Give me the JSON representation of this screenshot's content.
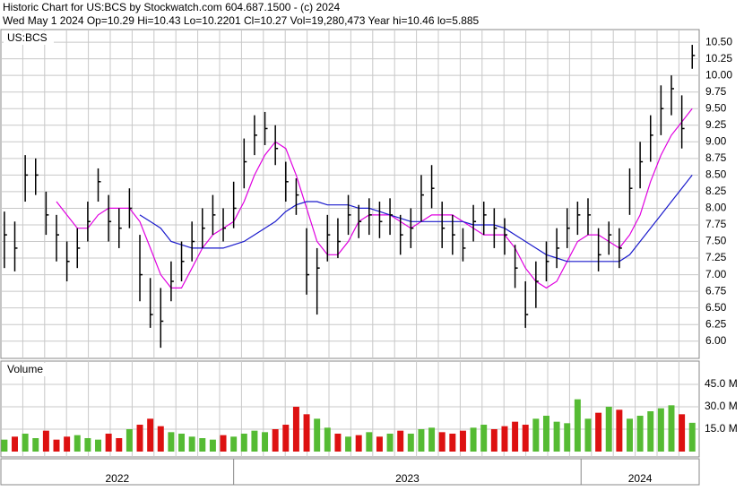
{
  "chart_data": {
    "type": "ohlc",
    "title": "Historic Chart for US:BCS by Stockwatch.com 604.687.1500 - (c) 2024",
    "subtitle": "Wed May  1 2024  Op=10.29  Hi=10.43  Lo=10.2201  Cl=10.27  Vol=19,280,473  Year hi=10.46  lo=5.885",
    "symbol_label": "US:BCS",
    "x": [
      2022.34,
      2022.37,
      2022.4,
      2022.43,
      2022.46,
      2022.49,
      2022.52,
      2022.55,
      2022.58,
      2022.61,
      2022.64,
      2022.67,
      2022.7,
      2022.73,
      2022.76,
      2022.79,
      2022.82,
      2022.85,
      2022.88,
      2022.91,
      2022.94,
      2022.97,
      2023.0,
      2023.03,
      2023.06,
      2023.09,
      2023.12,
      2023.15,
      2023.18,
      2023.21,
      2023.24,
      2023.27,
      2023.3,
      2023.33,
      2023.36,
      2023.39,
      2023.42,
      2023.45,
      2023.48,
      2023.51,
      2023.54,
      2023.57,
      2023.6,
      2023.63,
      2023.66,
      2023.69,
      2023.72,
      2023.75,
      2023.78,
      2023.81,
      2023.84,
      2023.87,
      2023.9,
      2023.93,
      2023.96,
      2023.99,
      2024.02,
      2024.05,
      2024.08,
      2024.11,
      2024.14,
      2024.17,
      2024.2,
      2024.23,
      2024.26,
      2024.29,
      2024.32
    ],
    "high": [
      7.95,
      7.8,
      8.8,
      8.75,
      8.25,
      7.9,
      7.5,
      7.7,
      8.1,
      8.6,
      8.2,
      8.0,
      8.3,
      7.6,
      6.95,
      6.8,
      7.2,
      7.5,
      7.8,
      8.0,
      8.2,
      8.0,
      8.4,
      9.05,
      9.4,
      9.45,
      9.25,
      8.7,
      8.45,
      7.7,
      7.4,
      7.9,
      7.85,
      8.2,
      8.05,
      8.15,
      8.1,
      8.15,
      7.9,
      8.0,
      8.5,
      8.65,
      8.1,
      7.9,
      7.7,
      8.05,
      8.1,
      8.0,
      7.85,
      7.45,
      6.9,
      7.2,
      7.5,
      7.7,
      8.0,
      8.1,
      8.15,
      7.7,
      7.8,
      7.7,
      8.6,
      9.0,
      9.4,
      9.85,
      10.0,
      9.7,
      10.46
    ],
    "low": [
      7.1,
      7.05,
      8.1,
      8.2,
      7.6,
      7.2,
      6.9,
      7.1,
      7.5,
      8.1,
      7.5,
      7.4,
      7.7,
      6.6,
      6.2,
      5.9,
      6.6,
      6.9,
      7.2,
      7.4,
      7.6,
      7.5,
      7.7,
      8.3,
      8.8,
      8.95,
      8.65,
      8.1,
      7.9,
      6.7,
      6.4,
      7.2,
      7.25,
      7.6,
      7.55,
      7.6,
      7.55,
      7.6,
      7.3,
      7.4,
      7.8,
      8.0,
      7.4,
      7.3,
      7.2,
      7.5,
      7.6,
      7.4,
      7.3,
      6.8,
      6.2,
      6.5,
      6.9,
      7.1,
      7.4,
      7.6,
      7.6,
      7.05,
      7.3,
      7.1,
      7.9,
      8.3,
      8.7,
      9.1,
      9.4,
      8.9,
      10.1
    ],
    "close": [
      7.6,
      7.4,
      8.5,
      8.5,
      7.9,
      7.6,
      7.2,
      7.4,
      7.8,
      8.4,
      7.8,
      7.7,
      8.0,
      7.0,
      6.4,
      6.3,
      6.9,
      7.2,
      7.5,
      7.7,
      7.9,
      7.7,
      8.0,
      8.7,
      9.1,
      9.2,
      8.9,
      8.4,
      8.2,
      7.0,
      7.1,
      7.6,
      7.5,
      7.9,
      7.8,
      7.9,
      7.8,
      7.9,
      7.6,
      7.7,
      8.2,
      8.3,
      7.7,
      7.6,
      7.4,
      7.8,
      7.9,
      7.7,
      7.6,
      7.1,
      6.4,
      6.9,
      7.2,
      7.4,
      7.7,
      7.9,
      7.9,
      7.3,
      7.6,
      7.4,
      8.3,
      8.7,
      9.1,
      9.5,
      9.8,
      9.2,
      10.3
    ],
    "bar_color": "#000000",
    "moving_averages": [
      {
        "color": "#e000e0",
        "values": [
          null,
          null,
          null,
          null,
          null,
          8.1,
          7.9,
          7.7,
          7.7,
          7.9,
          8.0,
          8.0,
          8.0,
          7.8,
          7.4,
          7.0,
          6.8,
          6.8,
          7.1,
          7.4,
          7.6,
          7.7,
          7.8,
          8.1,
          8.5,
          8.8,
          9.0,
          8.9,
          8.5,
          8.0,
          7.5,
          7.3,
          7.3,
          7.5,
          7.8,
          7.9,
          7.9,
          7.9,
          7.8,
          7.7,
          7.8,
          7.9,
          7.9,
          7.9,
          7.8,
          7.7,
          7.6,
          7.6,
          7.6,
          7.4,
          7.1,
          6.9,
          6.8,
          6.9,
          7.2,
          7.5,
          7.6,
          7.6,
          7.5,
          7.4,
          7.6,
          7.9,
          8.4,
          8.8,
          9.1,
          9.3,
          9.5
        ]
      },
      {
        "color": "#1a1acc",
        "values": [
          null,
          null,
          null,
          null,
          null,
          null,
          null,
          null,
          null,
          null,
          null,
          null,
          null,
          7.9,
          7.8,
          7.7,
          7.5,
          7.45,
          7.4,
          7.4,
          7.4,
          7.4,
          7.45,
          7.5,
          7.6,
          7.7,
          7.8,
          7.95,
          8.05,
          8.1,
          8.1,
          8.05,
          8.05,
          8.05,
          8.0,
          8.0,
          7.95,
          7.9,
          7.85,
          7.8,
          7.8,
          7.8,
          7.8,
          7.8,
          7.8,
          7.75,
          7.75,
          7.75,
          7.7,
          7.6,
          7.5,
          7.4,
          7.3,
          7.25,
          7.2,
          7.2,
          7.2,
          7.2,
          7.2,
          7.2,
          7.3,
          7.5,
          7.7,
          7.9,
          8.1,
          8.3,
          8.5
        ]
      }
    ],
    "xlim": [
      2022.33,
      2024.34
    ],
    "xticks": [
      2023,
      2024
    ],
    "year_labels": [
      "2022",
      "2023",
      "2024"
    ],
    "ylim": [
      5.74,
      10.69
    ],
    "yticks": [
      {
        "value": 6,
        "label": "6.00"
      },
      {
        "value": 6.25,
        "label": "6.25"
      },
      {
        "value": 6.5,
        "label": "6.50"
      },
      {
        "value": 6.75,
        "label": "6.75"
      },
      {
        "value": 7,
        "label": "7.00"
      },
      {
        "value": 7.25,
        "label": "7.25"
      },
      {
        "value": 7.5,
        "label": "7.50"
      },
      {
        "value": 7.75,
        "label": "7.75"
      },
      {
        "value": 8,
        "label": "8.00"
      },
      {
        "value": 8.25,
        "label": "8.25"
      },
      {
        "value": 8.5,
        "label": "8.50"
      },
      {
        "value": 8.75,
        "label": "8.75"
      },
      {
        "value": 9,
        "label": "9.00"
      },
      {
        "value": 9.25,
        "label": "9.25"
      },
      {
        "value": 9.5,
        "label": "9.50"
      },
      {
        "value": 9.75,
        "label": "9.75"
      },
      {
        "value": 10,
        "label": "10.00"
      },
      {
        "value": 10.25,
        "label": "10.25"
      },
      {
        "value": 10.5,
        "label": "10.50"
      }
    ],
    "grid": true,
    "volume": {
      "label": "Volume",
      "values": [
        8,
        10,
        12,
        9,
        14,
        8,
        10,
        11,
        9,
        8,
        12,
        9,
        15,
        18,
        22,
        17,
        13,
        12,
        10,
        9,
        8,
        11,
        10,
        12,
        14,
        13,
        15,
        18,
        30,
        25,
        22,
        16,
        12,
        10,
        11,
        13,
        10,
        12,
        14,
        12,
        15,
        16,
        13,
        12,
        14,
        16,
        18,
        15,
        17,
        20,
        18,
        22,
        24,
        20,
        19,
        35,
        22,
        26,
        30,
        28,
        22,
        24,
        27,
        29,
        31,
        25,
        19.28
      ],
      "ylim": [
        0,
        60
      ],
      "yticks": [
        {
          "value": 15,
          "label": "15.0 M"
        },
        {
          "value": 30,
          "label": "30.0 M"
        },
        {
          "value": 45,
          "label": "45.0 M"
        }
      ],
      "up_color": "#55bb33",
      "down_color": "#dd1111"
    }
  }
}
